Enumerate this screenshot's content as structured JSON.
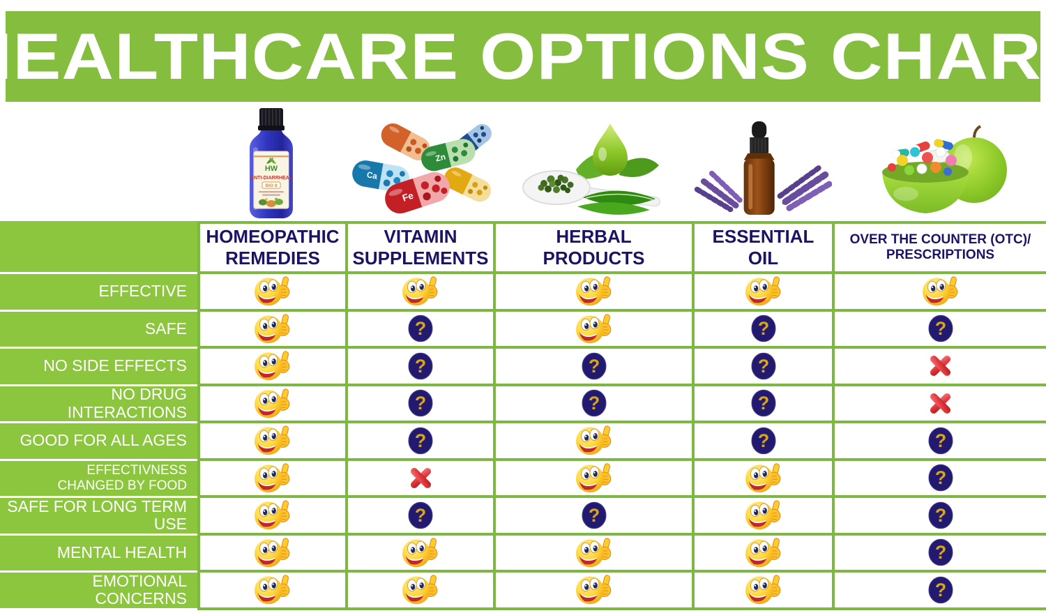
{
  "title": "HEALTHCARE OPTIONS CHART",
  "colors": {
    "banner_green": "#85BE3F",
    "row_label_green": "#8CC63F",
    "grid_green": "#7DB843",
    "header_text": "#1B1464",
    "question_circle_navy": "#221A6E",
    "question_mark_gold": "#D9A31C",
    "x_red": "#E23B3F",
    "smiley_yellow": "#FFD83C",
    "label_text_white": "#FFFFFF"
  },
  "chart_data": {
    "type": "table",
    "title": "HEALTHCARE OPTIONS CHART",
    "legend": {
      "yes": "thumbs-up-smiley-icon",
      "unknown": "question-mark-icon",
      "no": "red-x-icon"
    },
    "columns": [
      {
        "label": "HOMEOPATHIC\nREMEDIES",
        "image": "homeopathic-remedy-bottle"
      },
      {
        "label": "VITAMIN\nSUPPLEMENTS",
        "image": "vitamin-capsules"
      },
      {
        "label": "HERBAL\nPRODUCTS",
        "image": "herbal-leaves-and-spoon"
      },
      {
        "label": "ESSENTIAL OIL",
        "image": "essential-oil-dropper-bottle-with-lavender"
      },
      {
        "label": "OVER THE COUNTER (OTC)/\nPRESCRIPTIONS",
        "image": "green-apple-bowl-of-pills"
      }
    ],
    "rows": [
      {
        "label": "EFFECTIVE",
        "cells": [
          "yes",
          "yes",
          "yes",
          "yes",
          "yes"
        ]
      },
      {
        "label": "SAFE",
        "cells": [
          "yes",
          "unknown",
          "yes",
          "unknown",
          "unknown"
        ]
      },
      {
        "label": "NO SIDE EFFECTS",
        "cells": [
          "yes",
          "unknown",
          "unknown",
          "unknown",
          "no"
        ]
      },
      {
        "label": "NO DRUG INTERACTIONS",
        "cells": [
          "yes",
          "unknown",
          "unknown",
          "unknown",
          "no"
        ]
      },
      {
        "label": "GOOD FOR ALL AGES",
        "cells": [
          "yes",
          "unknown",
          "yes",
          "unknown",
          "unknown"
        ]
      },
      {
        "label": "EFFECTIVNESS\nCHANGED BY FOOD",
        "cells": [
          "yes",
          "no",
          "yes",
          "yes",
          "unknown"
        ]
      },
      {
        "label": "SAFE FOR LONG TERM USE",
        "cells": [
          "yes",
          "unknown",
          "unknown",
          "yes",
          "unknown"
        ]
      },
      {
        "label": "MENTAL HEALTH",
        "cells": [
          "yes",
          "yes",
          "yes",
          "yes",
          "unknown"
        ]
      },
      {
        "label": "EMOTIONAL CONCERNS",
        "cells": [
          "yes",
          "yes",
          "yes",
          "yes",
          "unknown"
        ]
      }
    ]
  },
  "images": {
    "bottle": {
      "brand": "HW",
      "name": "ANTI-DIARRHEAL",
      "badge": "BIO 8"
    },
    "capsule_labels": [
      "Fe",
      "Ca",
      "Zn"
    ]
  }
}
